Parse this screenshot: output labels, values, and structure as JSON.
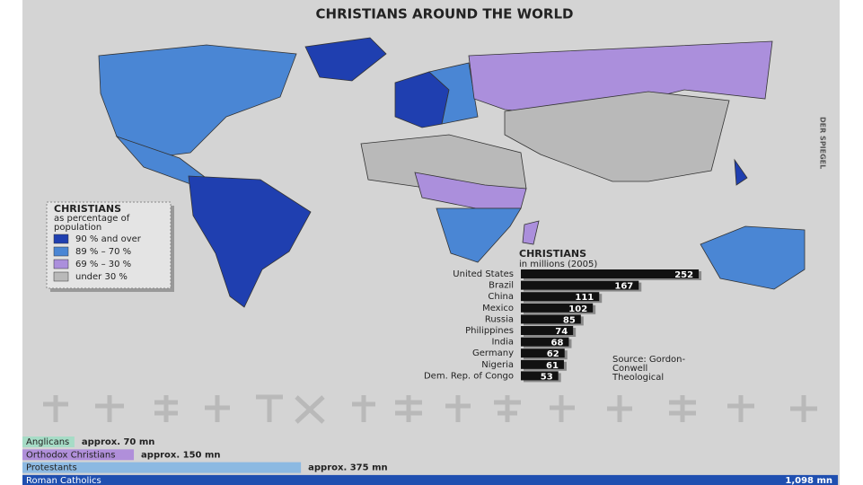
{
  "title": "CHRISTIANS AROUND THE WORLD",
  "credit": "DER SPIEGEL",
  "legend": {
    "title": "CHRISTIANS",
    "subtitle_lines": [
      "as percentage of",
      "population"
    ],
    "items": [
      {
        "label": "90 % and over",
        "color": "#1f3fb0"
      },
      {
        "label": "89 % – 70 %",
        "color": "#4a86d4"
      },
      {
        "label": "69 % – 30 %",
        "color": "#ab8fdc"
      },
      {
        "label": "under 30 %",
        "color": "#b9b9b9"
      }
    ]
  },
  "source_lines": [
    "Source: Gordon-",
    "Conwell",
    "Theological"
  ],
  "chart_data": [
    {
      "type": "bar",
      "orientation": "horizontal",
      "title": "CHRISTIANS",
      "subtitle": "in millions (2005)",
      "categories": [
        "United States",
        "Brazil",
        "China",
        "Mexico",
        "Russia",
        "Philippines",
        "India",
        "Germany",
        "Nigeria",
        "Dem. Rep. of Congo"
      ],
      "values": [
        252,
        167,
        111,
        102,
        85,
        74,
        68,
        62,
        61,
        53
      ],
      "color": "#111111"
    },
    {
      "type": "bar",
      "orientation": "horizontal",
      "categories": [
        "Anglicans",
        "Orthodox Christians",
        "Protestants",
        "Roman Catholics"
      ],
      "values": [
        70,
        150,
        375,
        1098
      ],
      "value_labels": [
        "approx. 70 mn",
        "approx. 150 mn",
        "approx. 375 mn",
        "1,098 mn"
      ],
      "colors": [
        "#a6dcc6",
        "#b08fda",
        "#8cb9e2",
        "#1f4fb0"
      ]
    }
  ]
}
